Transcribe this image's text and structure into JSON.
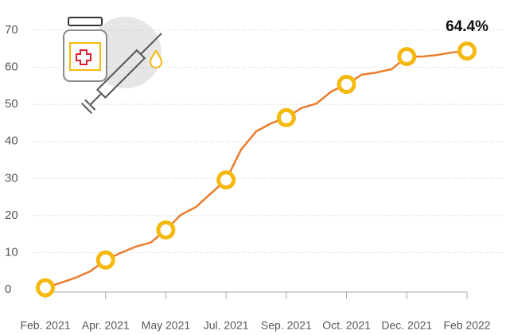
{
  "chart_data": {
    "type": "line",
    "categories": [
      "Feb. 2021",
      null,
      null,
      null,
      "Apr. 2021",
      null,
      null,
      null,
      "May 2021",
      null,
      null,
      null,
      "Jul. 2021",
      null,
      null,
      null,
      "Sep. 2021",
      null,
      null,
      null,
      "Oct. 2021",
      null,
      null,
      null,
      "Dec. 2021",
      null,
      null,
      null,
      "Feb 2022"
    ],
    "series": [
      {
        "color": "#ea7c2c",
        "marker_color": "#f5b80c",
        "values": [
          0.5,
          1.8,
          3.2,
          5.0,
          8,
          9.9,
          11.6,
          12.7,
          16.1,
          20.2,
          22.3,
          26,
          29.6,
          37.8,
          42.7,
          44.9,
          46.4,
          49,
          50.2,
          53.5,
          55.4,
          58,
          58.6,
          59.5,
          62.9,
          62.9,
          63.3,
          64,
          64.4
        ],
        "value_labels": [
          null,
          null,
          null,
          null,
          null,
          null,
          null,
          null,
          null,
          null,
          null,
          null,
          null,
          null,
          null,
          null,
          null,
          null,
          null,
          null,
          null,
          null,
          null,
          null,
          null,
          null,
          null,
          null,
          "64.4%"
        ]
      }
    ],
    "ylim": [
      0,
      70
    ],
    "yticks": [
      0,
      10,
      20,
      30,
      40,
      50,
      60,
      70
    ],
    "grid": true
  }
}
